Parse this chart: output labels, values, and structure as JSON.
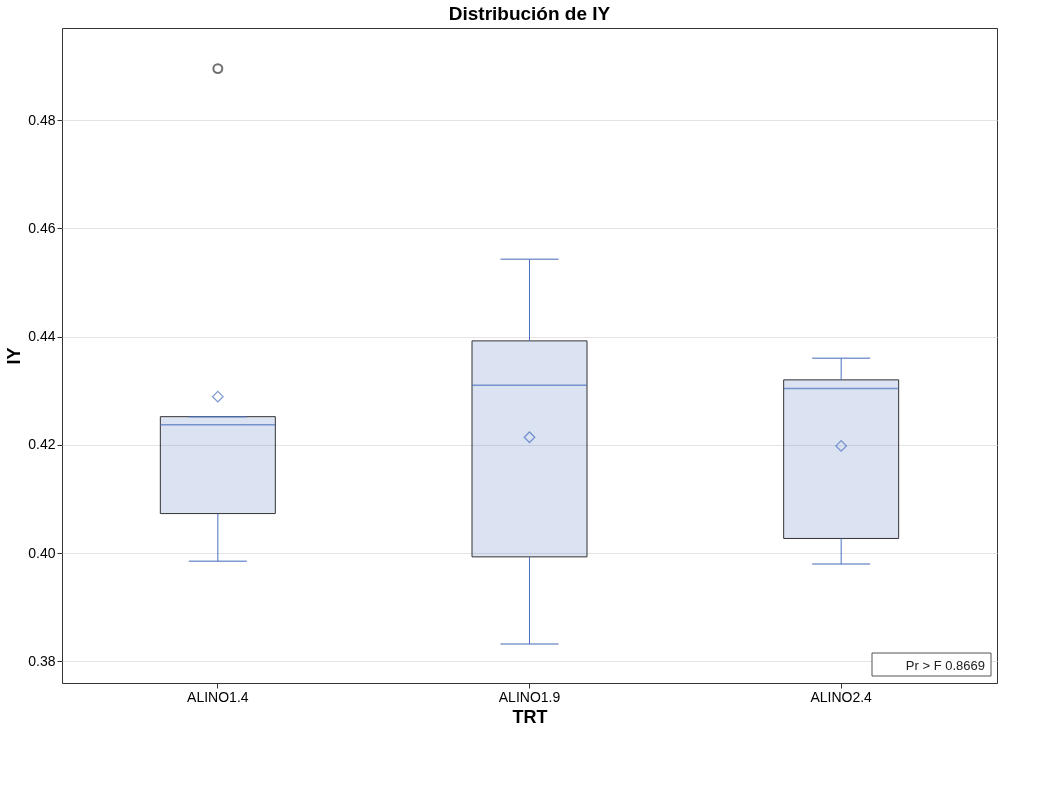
{
  "chart_data": {
    "type": "box",
    "title": "Distribución de IY",
    "xlabel": "TRT",
    "ylabel": "IY",
    "categories": [
      "ALINO1.4",
      "ALINO1.9",
      "ALINO2.4"
    ],
    "boxes": [
      {
        "low": 0.3985,
        "q1": 0.4073,
        "median": 0.4237,
        "q3": 0.4252,
        "high": 0.4252,
        "mean": 0.4289,
        "outliers": [
          0.4895
        ]
      },
      {
        "low": 0.3832,
        "q1": 0.3993,
        "median": 0.431,
        "q3": 0.4392,
        "high": 0.4543,
        "mean": 0.4214
      },
      {
        "low": 0.398,
        "q1": 0.4027,
        "median": 0.4304,
        "q3": 0.432,
        "high": 0.436,
        "mean": 0.4198
      }
    ],
    "color": "#4a6fbf",
    "ylim": [
      0.376,
      0.497
    ],
    "yticks": [
      0.38,
      {
        "value": 0.4,
        "label": "0.40"
      },
      0.42,
      0.44,
      0.46,
      0.48
    ],
    "grid": "y",
    "annotations": [
      "Pr > F    0.8669"
    ]
  }
}
